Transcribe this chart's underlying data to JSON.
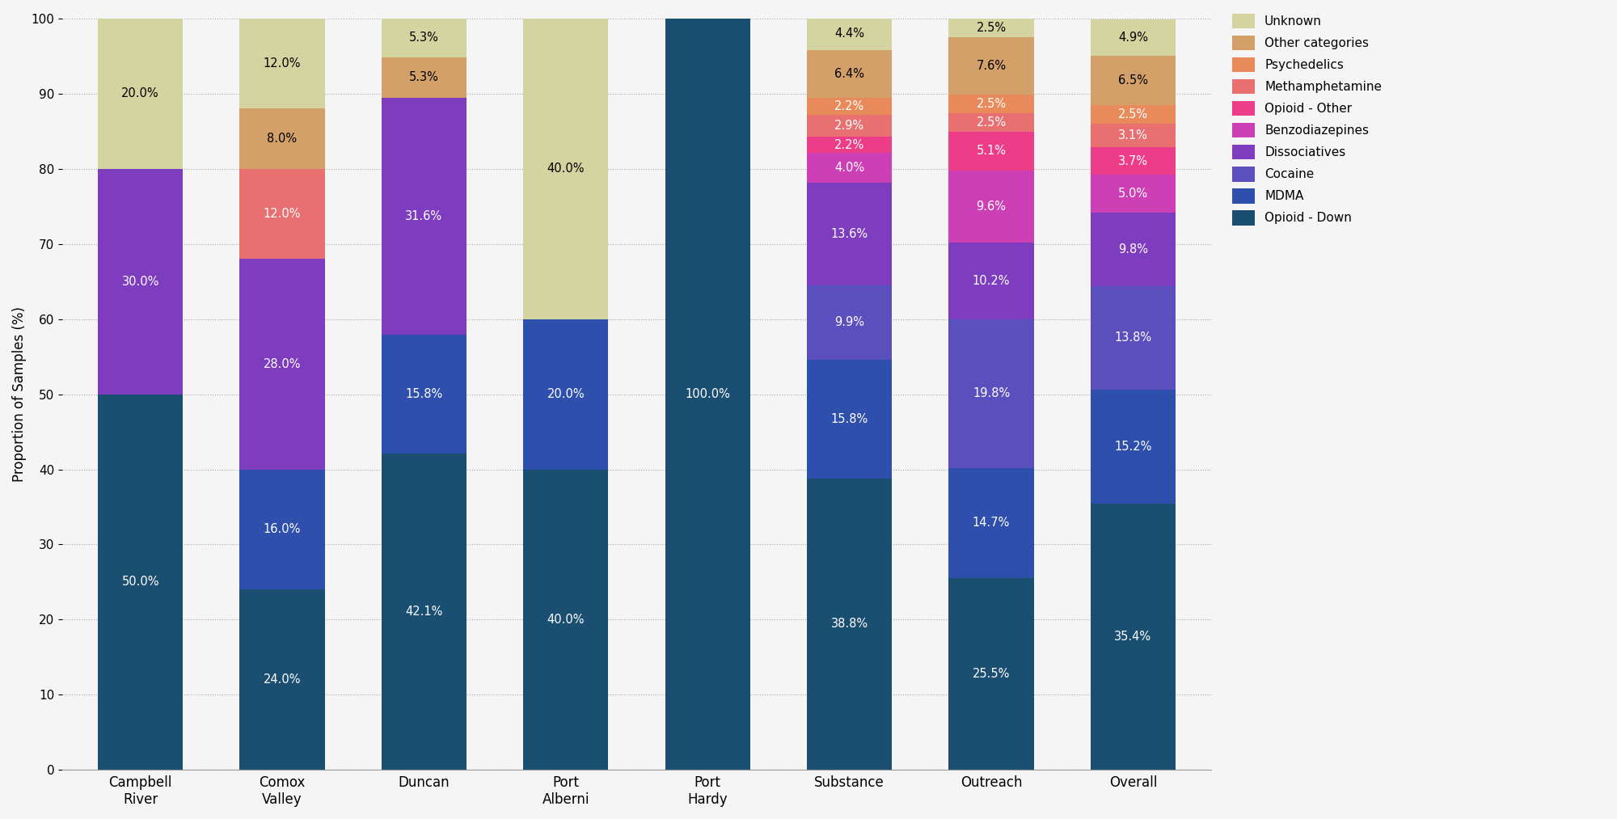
{
  "categories": [
    "Campbell\nRiver",
    "Comox\nValley",
    "Duncan",
    "Port\nAlberni",
    "Port\nHardy",
    "Substance",
    "Outreach",
    "Overall"
  ],
  "drug_classes": [
    "Opioid - Down",
    "MDMA",
    "Cocaine",
    "Dissociatives",
    "Benzodiazepines",
    "Opioid - Other",
    "Methamphetamine",
    "Psychedelics",
    "Other categories",
    "Unknown"
  ],
  "colors": [
    "#1b4f72",
    "#2e4fac",
    "#5b4fbe",
    "#7d3dbe",
    "#cc3fb5",
    "#ee3d88",
    "#e87070",
    "#e88a5a",
    "#d4a06a",
    "#d4d4a0"
  ],
  "data": {
    "Campbell\nRiver": [
      50.0,
      0.0,
      0.0,
      30.0,
      0.0,
      0.0,
      0.0,
      0.0,
      0.0,
      20.0
    ],
    "Comox\nValley": [
      24.0,
      16.0,
      0.0,
      28.0,
      0.0,
      0.0,
      12.0,
      0.0,
      8.0,
      12.0
    ],
    "Duncan": [
      42.1,
      15.8,
      0.0,
      31.6,
      0.0,
      0.0,
      0.0,
      0.0,
      5.3,
      5.3
    ],
    "Port\nAlberni": [
      40.0,
      20.0,
      0.0,
      0.0,
      0.0,
      0.0,
      0.0,
      0.0,
      0.0,
      40.0
    ],
    "Port\nHardy": [
      100.0,
      0.0,
      0.0,
      0.0,
      0.0,
      0.0,
      0.0,
      0.0,
      0.0,
      0.0
    ],
    "Substance": [
      38.8,
      15.8,
      9.9,
      13.6,
      4.0,
      2.2,
      2.9,
      2.2,
      6.4,
      4.4
    ],
    "Outreach": [
      25.5,
      14.7,
      19.8,
      10.2,
      9.6,
      5.1,
      2.5,
      2.5,
      7.6,
      2.5
    ],
    "Overall": [
      35.4,
      15.2,
      13.8,
      9.8,
      5.0,
      3.7,
      3.1,
      2.5,
      6.5,
      4.9
    ]
  },
  "ylabel": "Proportion of Samples (%)",
  "ylim": [
    0,
    100
  ],
  "background_color": "#f5f5f5",
  "min_label_pct": 1.0,
  "bar_width": 0.6,
  "label_fontsize": 10.5,
  "legend_fontsize": 11,
  "axis_fontsize": 12,
  "tick_fontsize": 11
}
